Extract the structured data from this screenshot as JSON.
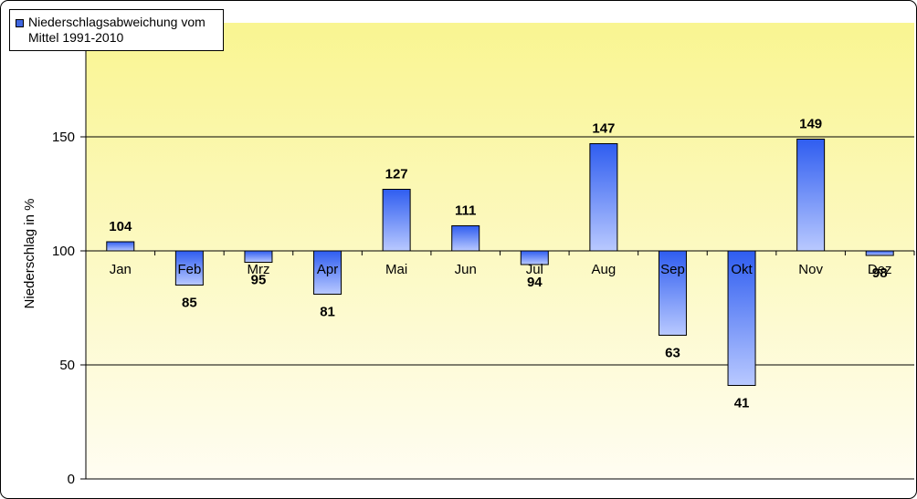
{
  "chart_data": {
    "type": "bar",
    "title": "",
    "xlabel": "",
    "ylabel": "Niederschlag in %",
    "ylim": [
      0,
      200
    ],
    "yticks": [
      0,
      50,
      100,
      150
    ],
    "baseline": 100,
    "categories": [
      "Jan",
      "Feb",
      "Mrz",
      "Apr",
      "Mai",
      "Jun",
      "Jul",
      "Aug",
      "Sep",
      "Okt",
      "Nov",
      "Dez"
    ],
    "series": [
      {
        "name": "Niederschlagsabweichung vom Mittel 1991-2010",
        "values": [
          104,
          85,
          95,
          81,
          127,
          111,
          94,
          147,
          63,
          41,
          149,
          98
        ]
      }
    ],
    "grid": "horizontal",
    "legend": "top-left",
    "colors": {
      "bar_dark": "#2f5df0",
      "bar_light": "#b9c9ff",
      "bg_top": "#f9f591",
      "bg_bottom": "#fffdf2"
    }
  }
}
